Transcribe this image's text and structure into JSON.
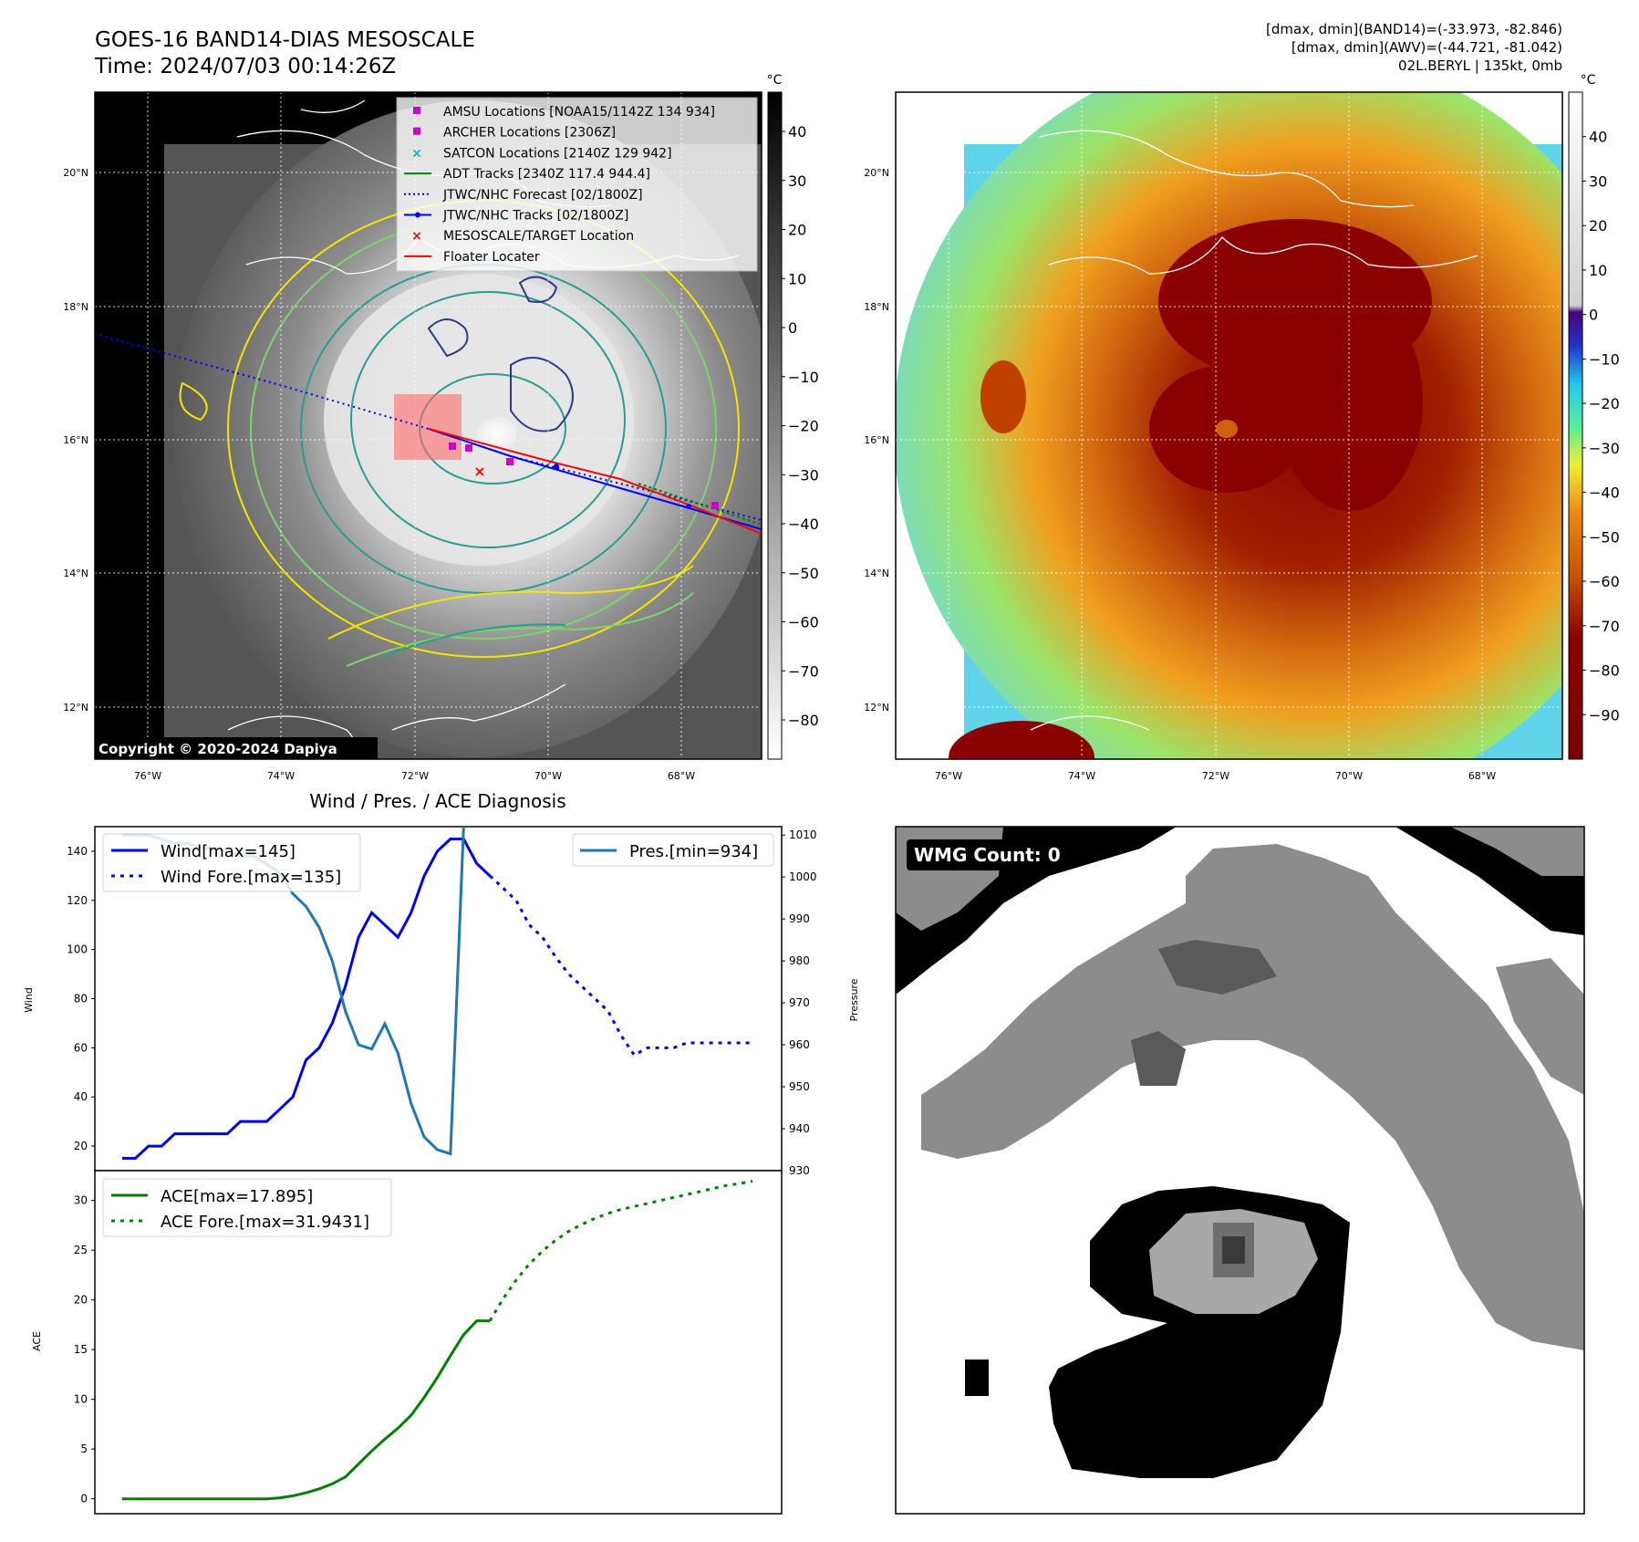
{
  "header": {
    "title_line1": "GOES-16 BAND14-DIAS MESOSCALE",
    "title_line2": "Time: 2024/07/03 00:14:26Z",
    "info_line1": "[dmax, dmin](BAND14)=(-33.973, -82.846)",
    "info_line2": "[dmax, dmin](AWV)=(-44.721, -81.042)",
    "info_line3": "02L.BERYL | 135kt, 0mb"
  },
  "colors": {
    "wind": "#0000ee",
    "pressure": "#1f77b4",
    "ace": "#008000",
    "land_outline": "#ffffff",
    "contour_dark": "#2e3a8c",
    "contour_teal": "#2a9d8f",
    "contour_green": "#7bd46a",
    "contour_yellow": "#f2e600"
  },
  "map_panels": {
    "lat_labels": [
      "20°N",
      "18°N",
      "16°N",
      "14°N",
      "12°N"
    ],
    "lon_labels": [
      "76°W",
      "74°W",
      "72°W",
      "70°W",
      "68°W"
    ],
    "copyright": "Copyright © 2020-2024 Dapiya",
    "cbar_unit": "°C",
    "left_cbar_ticks": [
      "40",
      "30",
      "20",
      "10",
      "0",
      "−10",
      "−20",
      "−30",
      "−40",
      "−50",
      "−60",
      "−70",
      "−80"
    ],
    "right_cbar_ticks": [
      "40",
      "30",
      "20",
      "10",
      "0",
      "−10",
      "−20",
      "−30",
      "−40",
      "−50",
      "−60",
      "−70",
      "−80",
      "−90"
    ]
  },
  "legend": {
    "items": [
      {
        "label": "AMSU Locations [NOAA15/1142Z 134 934]",
        "icon": "magenta-square",
        "color": "#cc00cc"
      },
      {
        "label": "ARCHER Locations [2306Z]",
        "icon": "magenta-square",
        "color": "#cc00cc"
      },
      {
        "label": "SATCON Locations [2140Z 129 942]",
        "icon": "cyan-x",
        "color": "#00bbbb"
      },
      {
        "label": "ADT Tracks [2340Z 117.4 944.4]",
        "icon": "green-line",
        "color": "#008000"
      },
      {
        "label": "JTWC/NHC Forecast [02/1800Z]",
        "icon": "blue-dotted-line",
        "color": "#0000ff"
      },
      {
        "label": "JTWC/NHC Tracks [02/1800Z]",
        "icon": "blue-line-dot",
        "color": "#0000ff"
      },
      {
        "label": "MESOSCALE/TARGET Location",
        "icon": "red-x",
        "color": "#ff0000"
      },
      {
        "label": "Floater Locater",
        "icon": "red-line",
        "color": "#ff0000"
      }
    ]
  },
  "wmg": {
    "label": "WMG Count: 0"
  },
  "chart_data": [
    {
      "type": "line",
      "title": "Wind / Pres. / ACE Diagnosis",
      "ylabel": "Wind",
      "y2label": "Pressure",
      "ylim": [
        10,
        150
      ],
      "y2lim": [
        930,
        1012
      ],
      "yticks": [
        20,
        40,
        60,
        80,
        100,
        120,
        140
      ],
      "y2ticks": [
        940,
        950,
        960,
        970,
        980,
        990,
        1000,
        1010
      ],
      "y2tick_bottom": "930",
      "legend_left": [
        "Wind[max=145]",
        "Wind Fore.[max=135]"
      ],
      "legend_right": [
        "Pres.[min=934]"
      ],
      "series": [
        {
          "name": "Wind[max=145]",
          "style": "solid",
          "axis": "left",
          "x": [
            0,
            1,
            2,
            3,
            4,
            5,
            6,
            7,
            8,
            9,
            10,
            11,
            12,
            13,
            14,
            15,
            16,
            17,
            18,
            19,
            20,
            21,
            22,
            23,
            24,
            25,
            26,
            27,
            28
          ],
          "values": [
            15,
            15,
            20,
            20,
            25,
            25,
            25,
            25,
            25,
            30,
            30,
            30,
            35,
            40,
            55,
            60,
            70,
            85,
            105,
            115,
            110,
            105,
            115,
            130,
            140,
            145,
            145,
            135,
            130
          ]
        },
        {
          "name": "Wind Fore.[max=135]",
          "style": "dotted",
          "axis": "left",
          "x": [
            28,
            29,
            30,
            31,
            32,
            33,
            34,
            35,
            36,
            37,
            38,
            39,
            40,
            41,
            42,
            43,
            44,
            45,
            46,
            47,
            48
          ],
          "values": [
            130,
            125,
            120,
            110,
            105,
            97,
            90,
            85,
            80,
            75,
            65,
            57,
            60,
            60,
            60,
            62,
            62,
            62,
            62,
            62,
            62
          ]
        },
        {
          "name": "Pres.[min=934]",
          "style": "solid",
          "axis": "right",
          "x": [
            0,
            1,
            2,
            3,
            4,
            5,
            6,
            7,
            8,
            9,
            10,
            11,
            12,
            13,
            14,
            15,
            16,
            17,
            18,
            19,
            20,
            21,
            22,
            23,
            24,
            25,
            26,
            27
          ],
          "values": [
            1010,
            1010,
            1010,
            1009,
            1008,
            1008,
            1007,
            1007,
            1006,
            1005,
            1005,
            1003,
            1001,
            996,
            993,
            988,
            980,
            968,
            960,
            959,
            965,
            958,
            946,
            938,
            935,
            934,
            1012,
            1015
          ]
        }
      ]
    },
    {
      "type": "line",
      "ylabel": "ACE",
      "ylim": [
        -1.5,
        33
      ],
      "yticks": [
        0,
        5,
        10,
        15,
        20,
        25,
        30
      ],
      "legend": [
        "ACE[max=17.895]",
        "ACE Fore.[max=31.9431]"
      ],
      "series": [
        {
          "name": "ACE[max=17.895]",
          "style": "solid",
          "x": [
            0,
            2,
            4,
            6,
            8,
            10,
            11,
            12,
            13,
            14,
            15,
            16,
            17,
            18,
            19,
            20,
            21,
            22,
            23,
            24,
            25,
            26,
            27,
            28
          ],
          "values": [
            0,
            0,
            0,
            0,
            0,
            0,
            0,
            0.1,
            0.3,
            0.6,
            1.0,
            1.5,
            2.2,
            3.5,
            4.8,
            6,
            7.1,
            8.4,
            10.2,
            12.2,
            14.4,
            16.5,
            17.9,
            17.9
          ]
        },
        {
          "name": "ACE Fore.[max=31.9431]",
          "style": "dotted",
          "x": [
            28,
            29,
            30,
            31,
            32,
            33,
            34,
            35,
            36,
            37,
            38,
            39,
            40,
            41,
            42,
            43,
            44,
            45,
            46,
            47,
            48
          ],
          "values": [
            17.9,
            20.1,
            22,
            23.6,
            24.9,
            26,
            26.9,
            27.6,
            28.2,
            28.7,
            29.1,
            29.4,
            29.7,
            30,
            30.3,
            30.6,
            30.9,
            31.2,
            31.5,
            31.7,
            31.94
          ]
        }
      ]
    }
  ]
}
